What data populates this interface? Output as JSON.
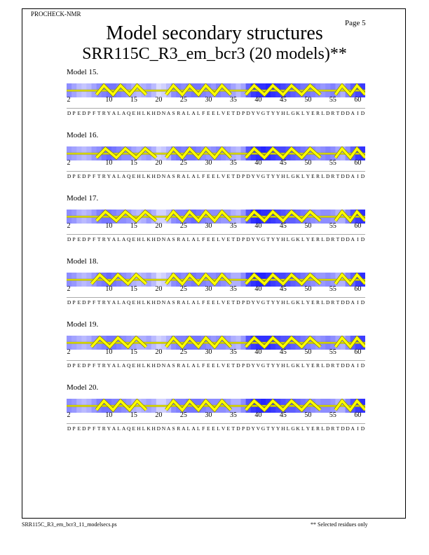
{
  "header": {
    "program": "PROCHECK-NMR",
    "page": "Page  5",
    "title": "Model secondary structures",
    "subtitle": "SRR115C_R3_em_bcr3 (20 models)**"
  },
  "sequence": {
    "start": 2,
    "end": 61,
    "residues": "DPEDPFTRYALAQEHLKHDNASRALALFEELVETDPDYVGTYYHLGKLYERLDRTDDAID",
    "tick_labels": [
      "2",
      "10",
      "15",
      "20",
      "25",
      "30",
      "35",
      "40",
      "45",
      "50",
      "55",
      "60"
    ],
    "tick_residues": [
      2,
      10,
      15,
      20,
      25,
      30,
      35,
      40,
      45,
      50,
      55,
      60
    ]
  },
  "models": [
    {
      "label": "Model 15.",
      "helices": [
        [
          8,
          17
        ],
        [
          22,
          34
        ],
        [
          38,
          52
        ],
        [
          56,
          61
        ]
      ],
      "shading": [
        0.5,
        0.4,
        0.3,
        0.25,
        0.3,
        0.4,
        0.5,
        0.55,
        0.6,
        0.6,
        0.55,
        0.5,
        0.45,
        0.35,
        0.3,
        0.35,
        0.4,
        0.3,
        0.15,
        0.2,
        0.3,
        0.5,
        0.55,
        0.5,
        0.55,
        0.6,
        0.6,
        0.55,
        0.5,
        0.45,
        0.55,
        0.5,
        0.5,
        0.4,
        0.3,
        0.4,
        0.7,
        0.85,
        0.9,
        0.9,
        0.95,
        0.9,
        0.85,
        0.8,
        0.75,
        0.7,
        0.65,
        0.6,
        0.6,
        0.55,
        0.5,
        0.45,
        0.5,
        0.55,
        0.45,
        0.35,
        0.55,
        0.7,
        0.8,
        0.85
      ]
    },
    {
      "label": "Model 16.",
      "helices": [
        [
          8,
          19
        ],
        [
          22,
          34
        ],
        [
          38,
          52
        ],
        [
          56,
          61
        ]
      ],
      "shading": [
        0.45,
        0.4,
        0.35,
        0.3,
        0.35,
        0.45,
        0.5,
        0.6,
        0.65,
        0.6,
        0.55,
        0.5,
        0.5,
        0.4,
        0.35,
        0.4,
        0.45,
        0.35,
        0.2,
        0.25,
        0.35,
        0.55,
        0.6,
        0.55,
        0.6,
        0.6,
        0.55,
        0.5,
        0.45,
        0.5,
        0.55,
        0.5,
        0.45,
        0.35,
        0.3,
        0.45,
        0.75,
        0.85,
        0.9,
        0.95,
        0.9,
        0.85,
        0.8,
        0.8,
        0.75,
        0.7,
        0.65,
        0.6,
        0.55,
        0.5,
        0.45,
        0.5,
        0.55,
        0.5,
        0.4,
        0.35,
        0.5,
        0.7,
        0.85,
        0.9
      ]
    },
    {
      "label": "Model 17.",
      "helices": [
        [
          8,
          19
        ],
        [
          22,
          34
        ],
        [
          38,
          52
        ],
        [
          56,
          61
        ]
      ],
      "shading": [
        0.5,
        0.45,
        0.35,
        0.3,
        0.35,
        0.45,
        0.55,
        0.6,
        0.6,
        0.55,
        0.5,
        0.5,
        0.45,
        0.35,
        0.3,
        0.35,
        0.45,
        0.35,
        0.2,
        0.2,
        0.3,
        0.5,
        0.55,
        0.55,
        0.6,
        0.65,
        0.6,
        0.55,
        0.5,
        0.5,
        0.5,
        0.45,
        0.45,
        0.35,
        0.3,
        0.45,
        0.75,
        0.9,
        0.95,
        0.9,
        0.9,
        0.85,
        0.8,
        0.75,
        0.7,
        0.7,
        0.65,
        0.6,
        0.55,
        0.5,
        0.45,
        0.5,
        0.5,
        0.45,
        0.35,
        0.35,
        0.55,
        0.75,
        0.85,
        0.9
      ]
    },
    {
      "label": "Model 18.",
      "helices": [
        [
          7,
          17
        ],
        [
          22,
          34
        ],
        [
          38,
          52
        ],
        [
          56,
          61
        ]
      ],
      "shading": [
        0.5,
        0.45,
        0.35,
        0.3,
        0.35,
        0.45,
        0.55,
        0.6,
        0.65,
        0.6,
        0.55,
        0.5,
        0.45,
        0.35,
        0.3,
        0.35,
        0.4,
        0.3,
        0.15,
        0.2,
        0.3,
        0.5,
        0.55,
        0.5,
        0.55,
        0.6,
        0.55,
        0.55,
        0.5,
        0.5,
        0.55,
        0.5,
        0.45,
        0.35,
        0.35,
        0.5,
        0.8,
        0.9,
        0.95,
        0.95,
        0.9,
        0.85,
        0.8,
        0.8,
        0.75,
        0.7,
        0.65,
        0.6,
        0.55,
        0.5,
        0.45,
        0.45,
        0.5,
        0.45,
        0.35,
        0.35,
        0.55,
        0.7,
        0.85,
        0.9
      ]
    },
    {
      "label": "Model 19.",
      "helices": [
        [
          7,
          17
        ],
        [
          22,
          34
        ],
        [
          38,
          52
        ],
        [
          56,
          61
        ]
      ],
      "shading": [
        0.45,
        0.4,
        0.35,
        0.3,
        0.35,
        0.45,
        0.5,
        0.55,
        0.6,
        0.6,
        0.55,
        0.5,
        0.45,
        0.4,
        0.35,
        0.35,
        0.4,
        0.3,
        0.2,
        0.25,
        0.35,
        0.5,
        0.55,
        0.55,
        0.6,
        0.6,
        0.6,
        0.55,
        0.5,
        0.45,
        0.5,
        0.5,
        0.45,
        0.35,
        0.3,
        0.45,
        0.75,
        0.85,
        0.9,
        0.9,
        0.9,
        0.85,
        0.8,
        0.75,
        0.75,
        0.7,
        0.65,
        0.6,
        0.55,
        0.5,
        0.45,
        0.5,
        0.55,
        0.5,
        0.4,
        0.35,
        0.5,
        0.7,
        0.8,
        0.85
      ]
    },
    {
      "label": "Model 20.",
      "helices": [
        [
          8,
          17
        ],
        [
          22,
          34
        ],
        [
          38,
          52
        ],
        [
          56,
          61
        ]
      ],
      "shading": [
        0.5,
        0.45,
        0.35,
        0.3,
        0.35,
        0.45,
        0.55,
        0.6,
        0.6,
        0.55,
        0.55,
        0.5,
        0.45,
        0.35,
        0.3,
        0.35,
        0.4,
        0.35,
        0.2,
        0.2,
        0.3,
        0.5,
        0.55,
        0.55,
        0.6,
        0.6,
        0.6,
        0.55,
        0.5,
        0.5,
        0.5,
        0.5,
        0.45,
        0.35,
        0.35,
        0.5,
        0.75,
        0.85,
        0.9,
        0.95,
        0.9,
        0.85,
        0.8,
        0.75,
        0.7,
        0.7,
        0.65,
        0.6,
        0.55,
        0.5,
        0.45,
        0.5,
        0.5,
        0.45,
        0.35,
        0.35,
        0.55,
        0.75,
        0.85,
        0.9
      ]
    }
  ],
  "footer": {
    "file": "SRR115C_R3_em_bcr3_11_modelsecs.ps",
    "note": "** Selected residues only"
  },
  "colors": {
    "shade_dark": "#1a1aff",
    "shade_light": "#ffffff",
    "helix_fill": "#ffff00",
    "helix_edge": "#8a8a00",
    "coil": "#d8d800"
  }
}
